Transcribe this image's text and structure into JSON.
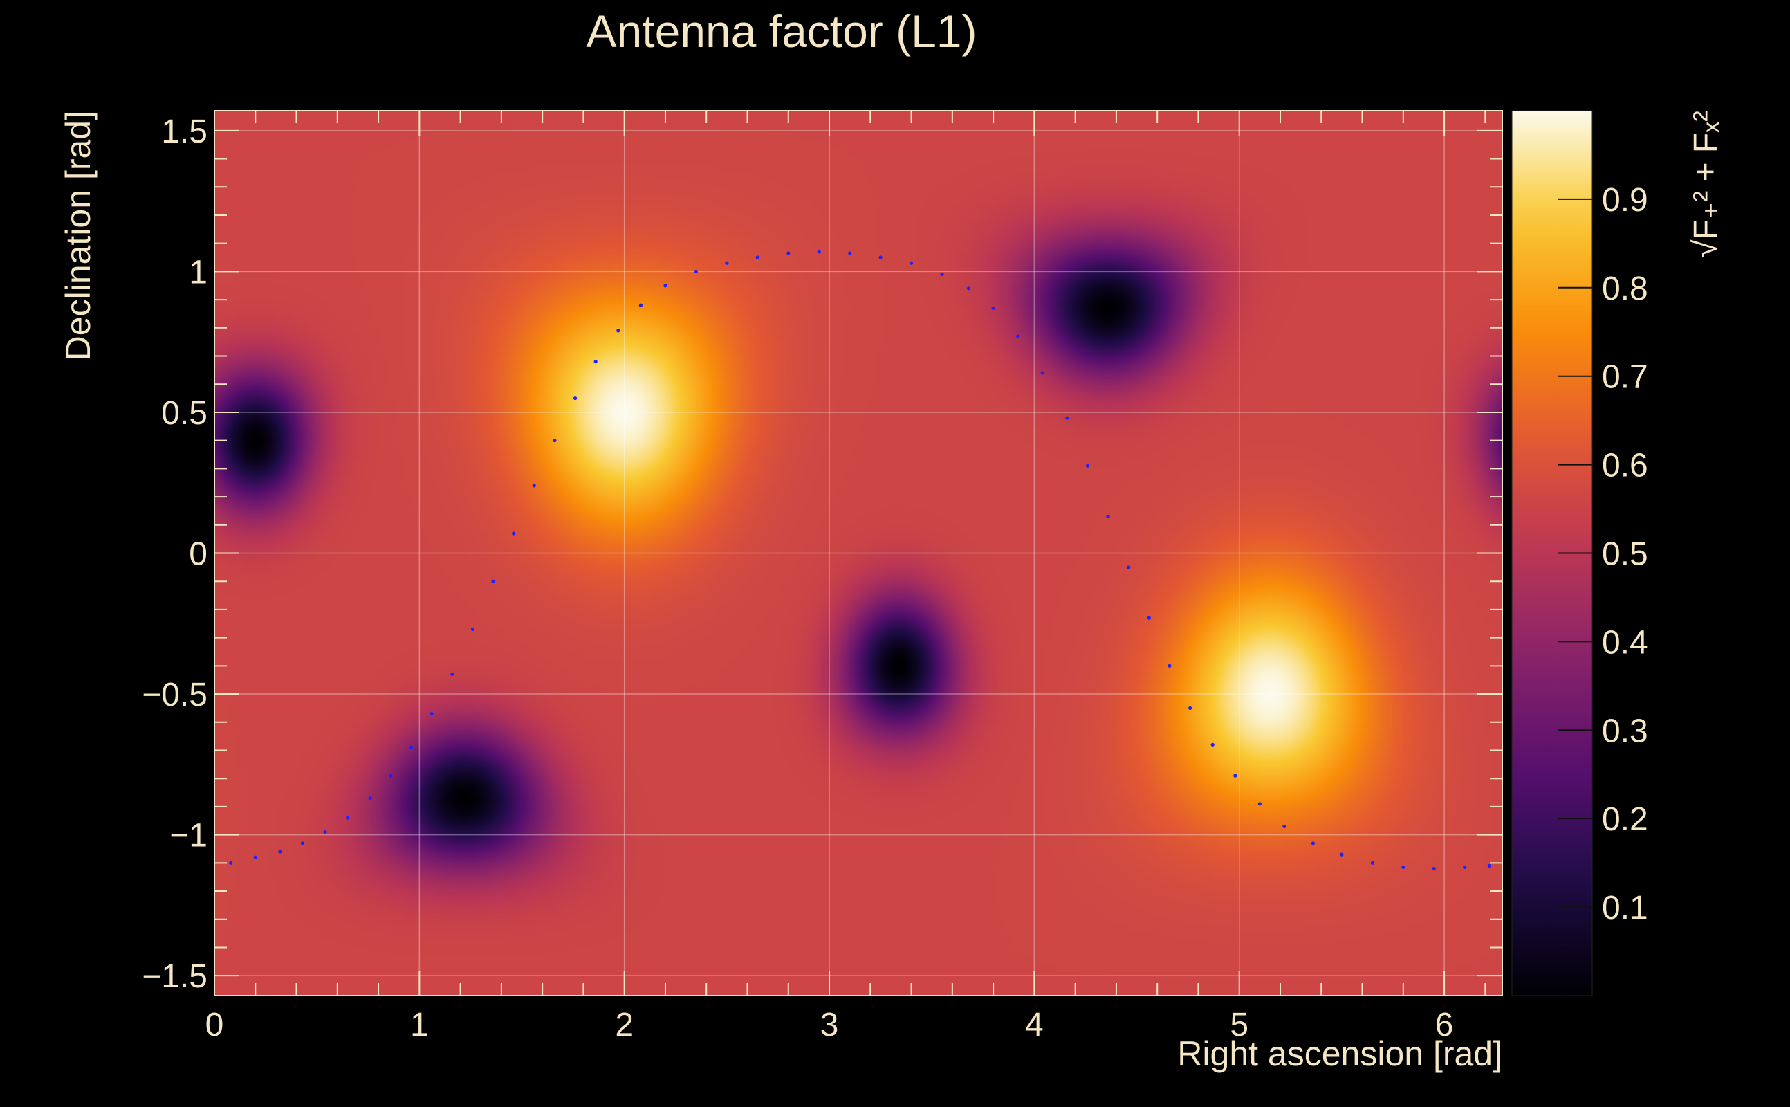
{
  "chart_data": {
    "type": "heatmap",
    "title": "Antenna factor (L1)",
    "xlabel": "Right ascension [rad]",
    "ylabel": "Declination [rad]",
    "colorbar_label": "√F₊² + Fₓ²",
    "xlim": [
      0,
      6.2832
    ],
    "ylim": [
      -1.5708,
      1.5708
    ],
    "zlim": [
      0,
      1
    ],
    "x_ticks": [
      0,
      1,
      2,
      3,
      4,
      5,
      6
    ],
    "x_tick_labels": [
      "0",
      "1",
      "2",
      "3",
      "4",
      "5",
      "6"
    ],
    "y_ticks": [
      -1.5,
      -1,
      -0.5,
      0,
      0.5,
      1,
      1.5
    ],
    "y_tick_labels": [
      "−1.5",
      "−1",
      "−0.5",
      "0",
      "0.5",
      "1",
      "1.5"
    ],
    "z_ticks": [
      0.1,
      0.2,
      0.3,
      0.4,
      0.5,
      0.6,
      0.7,
      0.8,
      0.9
    ],
    "z_tick_labels": [
      "0.1",
      "0.2",
      "0.3",
      "0.4",
      "0.5",
      "0.6",
      "0.7",
      "0.8",
      "0.9"
    ],
    "grid": true,
    "colormap": "inferno",
    "minima": [
      {
        "ra": 0.2,
        "dec": 0.4
      },
      {
        "ra": 1.22,
        "dec": -0.87
      },
      {
        "ra": 3.34,
        "dec": -0.4
      },
      {
        "ra": 4.36,
        "dec": 0.87
      }
    ],
    "maxima": [
      {
        "ra": 2.0,
        "dec": 0.5
      },
      {
        "ra": 5.15,
        "dec": -0.5
      }
    ],
    "overlay_path": {
      "color": "#2020ff",
      "style": "dotted",
      "points": [
        [
          0.08,
          -1.1
        ],
        [
          0.2,
          -1.08
        ],
        [
          0.32,
          -1.06
        ],
        [
          0.43,
          -1.03
        ],
        [
          0.54,
          -0.99
        ],
        [
          0.65,
          -0.94
        ],
        [
          0.76,
          -0.87
        ],
        [
          0.86,
          -0.79
        ],
        [
          0.96,
          -0.69
        ],
        [
          1.06,
          -0.57
        ],
        [
          1.16,
          -0.43
        ],
        [
          1.26,
          -0.27
        ],
        [
          1.36,
          -0.1
        ],
        [
          1.46,
          0.07
        ],
        [
          1.56,
          0.24
        ],
        [
          1.66,
          0.4
        ],
        [
          1.76,
          0.55
        ],
        [
          1.86,
          0.68
        ],
        [
          1.97,
          0.79
        ],
        [
          2.08,
          0.88
        ],
        [
          2.2,
          0.95
        ],
        [
          2.35,
          1.0
        ],
        [
          2.5,
          1.03
        ],
        [
          2.65,
          1.05
        ],
        [
          2.8,
          1.065
        ],
        [
          2.95,
          1.07
        ],
        [
          3.1,
          1.065
        ],
        [
          3.25,
          1.05
        ],
        [
          3.4,
          1.03
        ],
        [
          3.55,
          0.99
        ],
        [
          3.68,
          0.94
        ],
        [
          3.8,
          0.87
        ],
        [
          3.92,
          0.77
        ],
        [
          4.04,
          0.64
        ],
        [
          4.16,
          0.48
        ],
        [
          4.26,
          0.31
        ],
        [
          4.36,
          0.13
        ],
        [
          4.46,
          -0.05
        ],
        [
          4.56,
          -0.23
        ],
        [
          4.66,
          -0.4
        ],
        [
          4.76,
          -0.55
        ],
        [
          4.87,
          -0.68
        ],
        [
          4.98,
          -0.79
        ],
        [
          5.1,
          -0.89
        ],
        [
          5.22,
          -0.97
        ],
        [
          5.36,
          -1.03
        ],
        [
          5.5,
          -1.07
        ],
        [
          5.65,
          -1.1
        ],
        [
          5.8,
          -1.115
        ],
        [
          5.95,
          -1.12
        ],
        [
          6.1,
          -1.115
        ],
        [
          6.22,
          -1.11
        ]
      ]
    }
  }
}
